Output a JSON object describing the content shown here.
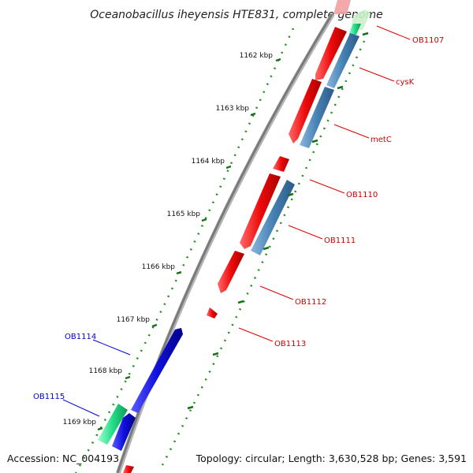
{
  "title": "Oceanobacillus iheyensis HTE831, complete genome",
  "footer": {
    "accession": "Accession: NC_004193",
    "summary": "Topology: circular; Length: 3,630,528 bp; Genes: 3,591"
  },
  "ruler": [
    "1162 kbp",
    "1163 kbp",
    "1164 kbp",
    "1165 kbp",
    "1166 kbp",
    "1167 kbp",
    "1168 kbp",
    "1169 kbp"
  ],
  "genes_right": [
    "OB1107",
    "cysK",
    "metC",
    "OB1110",
    "OB1111",
    "OB1112",
    "OB1113"
  ],
  "genes_left": [
    "OB1114",
    "OB1115"
  ],
  "colors": {
    "forward_gene": "#ee1111",
    "reverse_gene": "#1111dd",
    "other_gene": "#4682b4",
    "rna_gene": "#22dd88",
    "backbone": "#8a8a8a",
    "tick": "#1a7a1a",
    "label_right": "#cc0000",
    "label_left": "#0000cc"
  }
}
